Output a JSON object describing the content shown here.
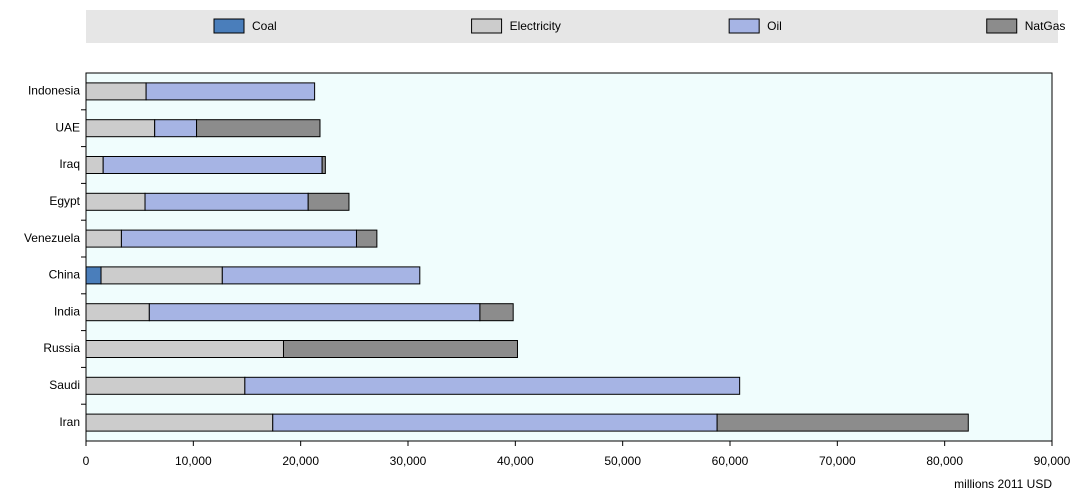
{
  "chart_data": {
    "type": "stacked-hbar",
    "x_label": "millions 2011 USD",
    "categories": [
      "Indonesia",
      "UAE",
      "Iraq",
      "Egypt",
      "Venezuela",
      "China",
      "India",
      "Russia",
      "Saudi",
      "Iran"
    ],
    "series": [
      {
        "name": "Coal",
        "color": "#4a7ebb",
        "values": [
          0,
          0,
          0,
          0,
          0,
          1400,
          0,
          0,
          0,
          0
        ]
      },
      {
        "name": "Electricity",
        "color": "#cccccc",
        "values": [
          5600,
          6400,
          1600,
          5500,
          3300,
          11300,
          5900,
          18400,
          14800,
          17400
        ]
      },
      {
        "name": "Oil",
        "color": "#a6b4e4",
        "values": [
          15700,
          3900,
          20400,
          15200,
          21900,
          18400,
          30800,
          0,
          46100,
          41400
        ]
      },
      {
        "name": "NatGas",
        "color": "#8c8c8c",
        "values": [
          0,
          11500,
          300,
          3800,
          1900,
          0,
          3100,
          21800,
          0,
          23400
        ]
      }
    ],
    "xlim": [
      0,
      90000
    ],
    "xticks": [
      0,
      {
        "value": 10000,
        "label": "10,000"
      },
      {
        "value": 20000,
        "label": "20,000"
      },
      {
        "value": 30000,
        "label": "30,000"
      },
      {
        "value": 40000,
        "label": "40,000"
      },
      {
        "value": 50000,
        "label": "50,000"
      },
      {
        "value": 60000,
        "label": "60,000"
      },
      {
        "value": 70000,
        "label": "70,000"
      },
      {
        "value": 80000,
        "label": "80,000"
      },
      {
        "value": 90000,
        "label": "90,000"
      }
    ],
    "plot_background": "#f0fdfd",
    "legend": "top"
  }
}
